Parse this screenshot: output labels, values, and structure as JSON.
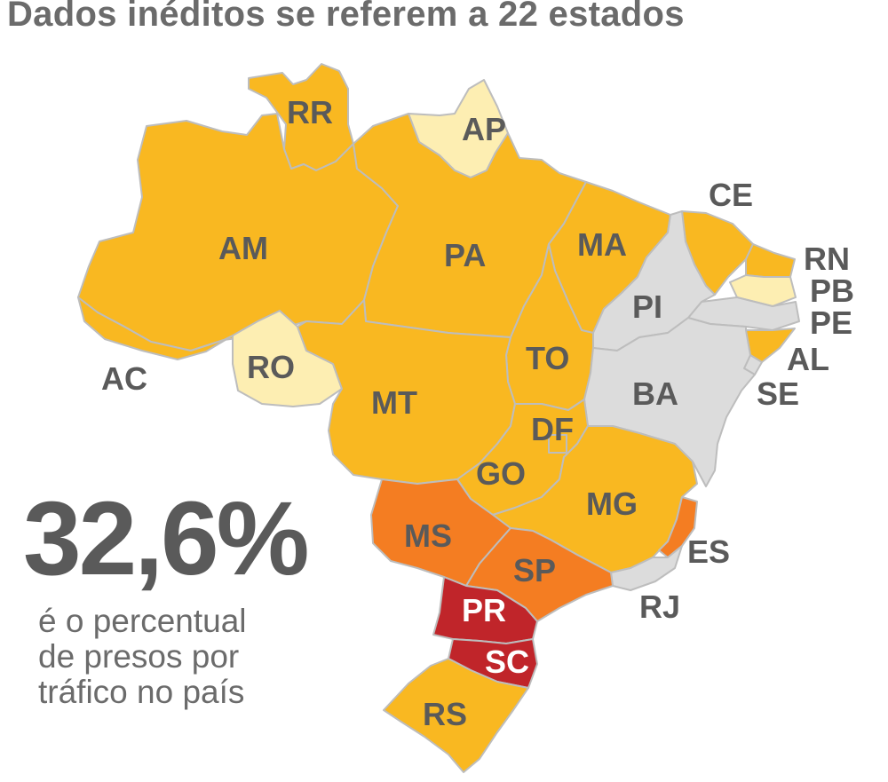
{
  "title": "Dados inéditos se referem a 22 estados",
  "colors": {
    "amarelo": "#f9b821",
    "amarelo_claro": "#fdeeb2",
    "laranja": "#f47d22",
    "vermelho": "#c0252a",
    "cinza": "#dcdcdc"
  },
  "states": {
    "RR": "RR",
    "AP": "AP",
    "AM": "AM",
    "PA": "PA",
    "MA": "MA",
    "CE": "CE",
    "RN": "RN",
    "PB": "PB",
    "PE": "PE",
    "PI": "PI",
    "AL": "AL",
    "SE": "SE",
    "AC": "AC",
    "RO": "RO",
    "TO": "TO",
    "BA": "BA",
    "MT": "MT",
    "DF": "DF",
    "GO": "GO",
    "MG": "MG",
    "ES": "ES",
    "MS": "MS",
    "SP": "SP",
    "RJ": "RJ",
    "PR": "PR",
    "SC": "SC",
    "RS": "RS"
  },
  "highlight": {
    "value": "32,6%",
    "caption_lines": [
      "é o percentual",
      "de presos por",
      "tráfico no país"
    ]
  }
}
